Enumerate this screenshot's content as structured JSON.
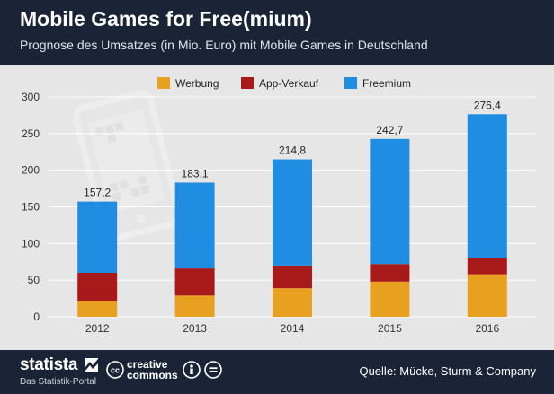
{
  "header": {
    "title": "Mobile Games for Free(mium)",
    "subtitle": "Prognose des Umsatzes (in Mio. Euro) mit Mobile Games in Deutschland"
  },
  "footer": {
    "brand": "statista",
    "tagline": "Das Statistik-Portal",
    "cc_word_1": "creative",
    "cc_word_2": "commons",
    "source": "Quelle: Mücke, Sturm & Company"
  },
  "colors": {
    "background": "#e6e6e6",
    "header": "#1a2436",
    "Werbung": "#e8a020",
    "App-Verkauf": "#a81a1a",
    "Freemium": "#1f8ee2"
  },
  "chart_data": {
    "type": "bar",
    "stacked": true,
    "categories": [
      "2012",
      "2013",
      "2014",
      "2015",
      "2016"
    ],
    "series": [
      {
        "name": "Werbung",
        "values": [
          22,
          29,
          39,
          48,
          58
        ]
      },
      {
        "name": "App-Verkauf",
        "values": [
          38,
          37,
          31,
          24,
          22
        ]
      },
      {
        "name": "Freemium",
        "values": [
          97.2,
          117.1,
          144.8,
          170.7,
          196.4
        ]
      }
    ],
    "totals": [
      "157,2",
      "183,1",
      "214,8",
      "242,7",
      "276,4"
    ],
    "ylim": [
      0,
      300
    ],
    "yticks": [
      "0",
      "50",
      "100",
      "150",
      "200",
      "250",
      "300"
    ],
    "grid": true,
    "legend": "top-center",
    "xlabel": "",
    "ylabel": ""
  }
}
